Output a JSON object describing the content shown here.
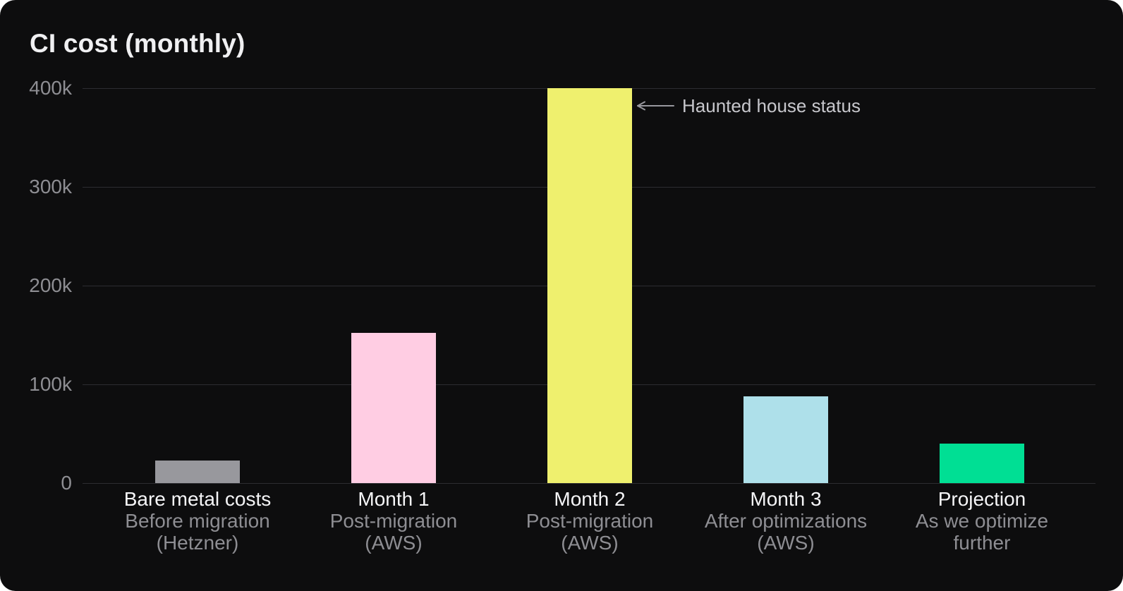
{
  "chart_data": {
    "type": "bar",
    "title": "CI cost (monthly)",
    "ylabel": "",
    "xlabel": "",
    "ylim": [
      0,
      400000
    ],
    "grid": "horizontal",
    "legend": false,
    "y_axis": {
      "ticks": [
        {
          "label": "400k",
          "value": 400000
        },
        {
          "label": "300k",
          "value": 300000
        },
        {
          "label": "200k",
          "value": 200000
        },
        {
          "label": "100k",
          "value": 100000
        },
        {
          "label": "0",
          "value": 0
        }
      ]
    },
    "categories": [
      {
        "label": "Bare metal costs",
        "sub1": "Before migration",
        "sub2": "(Hetzner)",
        "value": 23000,
        "color": "#98989d"
      },
      {
        "label": "Month 1",
        "sub1": "Post-migration",
        "sub2": "(AWS)",
        "value": 152000,
        "color": "#ffcde3"
      },
      {
        "label": "Month 2",
        "sub1": "Post-migration",
        "sub2": "(AWS)",
        "value": 400000,
        "color": "#eff06e"
      },
      {
        "label": "Month 3",
        "sub1": "After optimizations",
        "sub2": "(AWS)",
        "value": 88000,
        "color": "#aee0ea"
      },
      {
        "label": "Projection",
        "sub1": "As we optimize",
        "sub2": "further",
        "value": 40000,
        "color": "#00df94"
      }
    ],
    "annotation": {
      "text": "Haunted house status",
      "arrow": "left-arrow",
      "target_category": "Month 2"
    }
  },
  "theme": {
    "page_bg": "#ffffff",
    "card_bg": "#0d0d0e",
    "title_color": "#f0f0f2",
    "grid_color": "#2d2d31",
    "tick_color": "#8e8e93",
    "label_color": "#f5f5f7",
    "sublabel_color": "#8e8e93",
    "annotation_color": "#c7c7cc",
    "arrow_color": "#98989e"
  }
}
